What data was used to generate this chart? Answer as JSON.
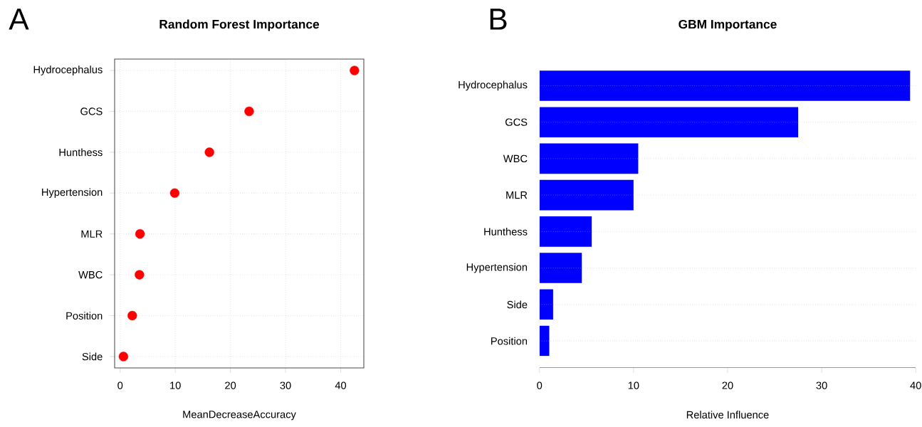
{
  "chart_data": [
    {
      "type": "scatter",
      "title": "Random Forest Importance",
      "xlabel": "MeanDecreaseAccuracy",
      "annotations": [
        "A"
      ],
      "orientation": "horizontal",
      "categories": [
        "Hydrocephalus",
        "GCS",
        "Hunthess",
        "Hypertension",
        "MLR",
        "WBC",
        "Position",
        "Side"
      ],
      "values": [
        42.5,
        23.4,
        16.2,
        9.9,
        3.6,
        3.5,
        2.2,
        0.6
      ],
      "color": "#ff0000",
      "xlim": [
        -1,
        44.2
      ],
      "xticks": [
        0,
        10,
        20,
        30,
        40
      ],
      "grid": true
    },
    {
      "type": "bar",
      "title": "GBM Importance",
      "xlabel": "Relative Influence",
      "annotations": [
        "B"
      ],
      "orientation": "horizontal",
      "categories": [
        "Hydrocephalus",
        "GCS",
        "WBC",
        "MLR",
        "Hunthess",
        "Hypertension",
        "Side",
        "Position"
      ],
      "values": [
        39.4,
        27.5,
        10.5,
        10.0,
        5.55,
        4.5,
        1.45,
        1.04
      ],
      "color": "#0000ff",
      "xlim": [
        0,
        40
      ],
      "xticks": [
        0,
        10,
        20,
        30,
        40
      ],
      "grid": "y"
    }
  ]
}
